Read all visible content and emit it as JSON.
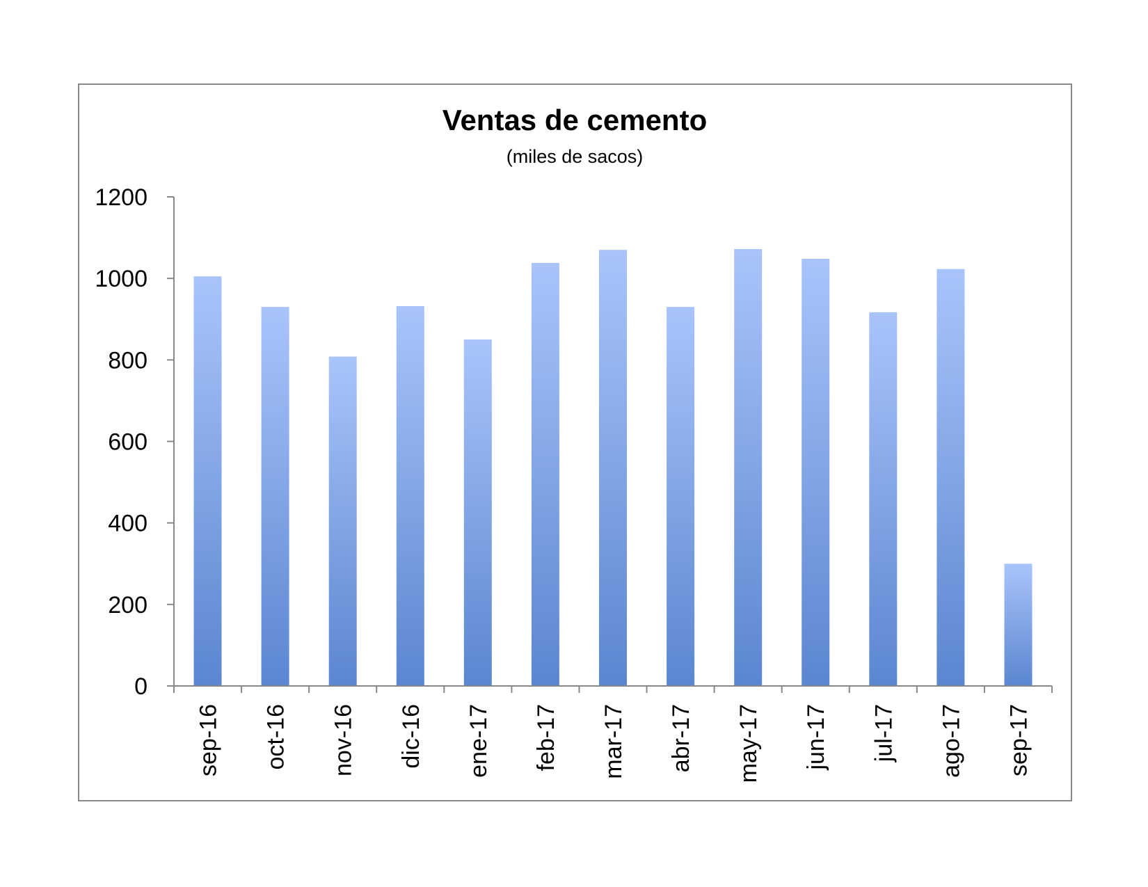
{
  "chart_data": {
    "type": "bar",
    "title": "Ventas de cemento",
    "subtitle": "(miles de sacos)",
    "xlabel": "",
    "ylabel": "",
    "categories": [
      "sep-16",
      "oct-16",
      "nov-16",
      "dic-16",
      "ene-17",
      "feb-17",
      "mar-17",
      "abr-17",
      "may-17",
      "jun-17",
      "jul-17",
      "ago-17",
      "sep-17"
    ],
    "values": [
      1005,
      930,
      808,
      932,
      850,
      1038,
      1070,
      930,
      1072,
      1048,
      917,
      1023,
      300
    ],
    "ylim": [
      0,
      1200
    ],
    "yticks": [
      0,
      200,
      400,
      600,
      800,
      1000,
      1200
    ],
    "grid": false,
    "legend": "none",
    "colors": {
      "bar_top": "#a9c4fb",
      "bar_bottom": "#5b86d0",
      "axis": "#888888",
      "border": "#888888"
    }
  }
}
